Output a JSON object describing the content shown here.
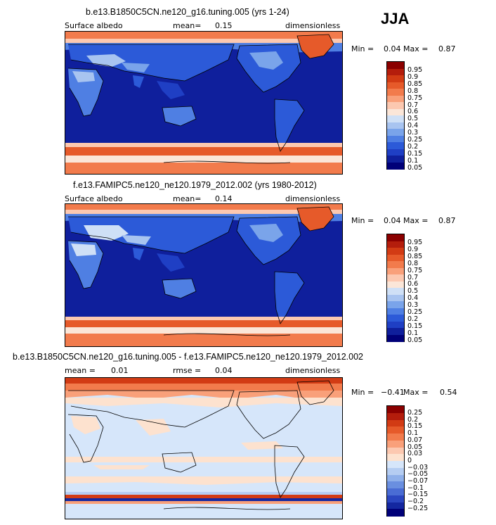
{
  "season": "JJA",
  "panels": [
    {
      "title": "b.e13.B1850C5CN.ne120_g16.tuning.005 (yrs 1-24)",
      "variable": "Surface albedo",
      "stat_label": "mean=",
      "stat_value": "0.15",
      "units": "dimensionless",
      "min_label": "Min =",
      "min_value": "0.04",
      "max_label": "Max =",
      "max_value": "0.87",
      "colorbar_labels": [
        "0.95",
        "0.9",
        "0.85",
        "0.8",
        "0.75",
        "0.7",
        "0.6",
        "0.5",
        "0.4",
        "0.3",
        "0.25",
        "0.2",
        "0.15",
        "0.1",
        "0.05"
      ]
    },
    {
      "title": "f.e13.FAMIPC5.ne120_ne120.1979_2012.002 (yrs 1980-2012)",
      "variable": "Surface albedo",
      "stat_label": "mean=",
      "stat_value": "0.14",
      "units": "dimensionless",
      "min_label": "Min =",
      "min_value": "0.04",
      "max_label": "Max =",
      "max_value": "0.87",
      "colorbar_labels": [
        "0.95",
        "0.9",
        "0.85",
        "0.8",
        "0.75",
        "0.7",
        "0.6",
        "0.5",
        "0.4",
        "0.3",
        "0.25",
        "0.2",
        "0.15",
        "0.1",
        "0.05"
      ]
    },
    {
      "title": "b.e13.B1850C5CN.ne120_g16.tuning.005 - f.e13.FAMIPC5.ne120_ne120.1979_2012.002",
      "stat_label": "mean =",
      "stat_value": "0.01",
      "stat2_label": "rmse =",
      "stat2_value": "0.04",
      "units": "dimensionless",
      "min_label": "Min =",
      "min_value": "−0.41",
      "max_label": "Max =",
      "max_value": "0.54",
      "colorbar_labels": [
        "0.25",
        "0.2",
        "0.15",
        "0.1",
        "0.07",
        "0.05",
        "0.03",
        "0",
        "−0.03",
        "−0.05",
        "−0.07",
        "−0.1",
        "−0.15",
        "−0.2",
        "−0.25"
      ]
    }
  ],
  "colors": {
    "abs_scale": [
      "#8b0000",
      "#b41d0c",
      "#d23b14",
      "#e65a2a",
      "#f27b4c",
      "#f9a07a",
      "#fcc8b0",
      "#fbe6d8",
      "#cfe0f6",
      "#a8c4f0",
      "#7aa4ea",
      "#4f7fe3",
      "#2c5ad8",
      "#1f3fc4",
      "#0f1f9c",
      "#000078"
    ],
    "diff_scale": [
      "#8b0000",
      "#b41d0c",
      "#d23b14",
      "#e65a2a",
      "#f27b4c",
      "#f9a07a",
      "#fcc8b0",
      "#fde2cf",
      "#d6e6fa",
      "#b5cdf2",
      "#8fb0ea",
      "#6a8fe0",
      "#4a6cd4",
      "#2b46c0",
      "#1427a0",
      "#000078"
    ]
  }
}
